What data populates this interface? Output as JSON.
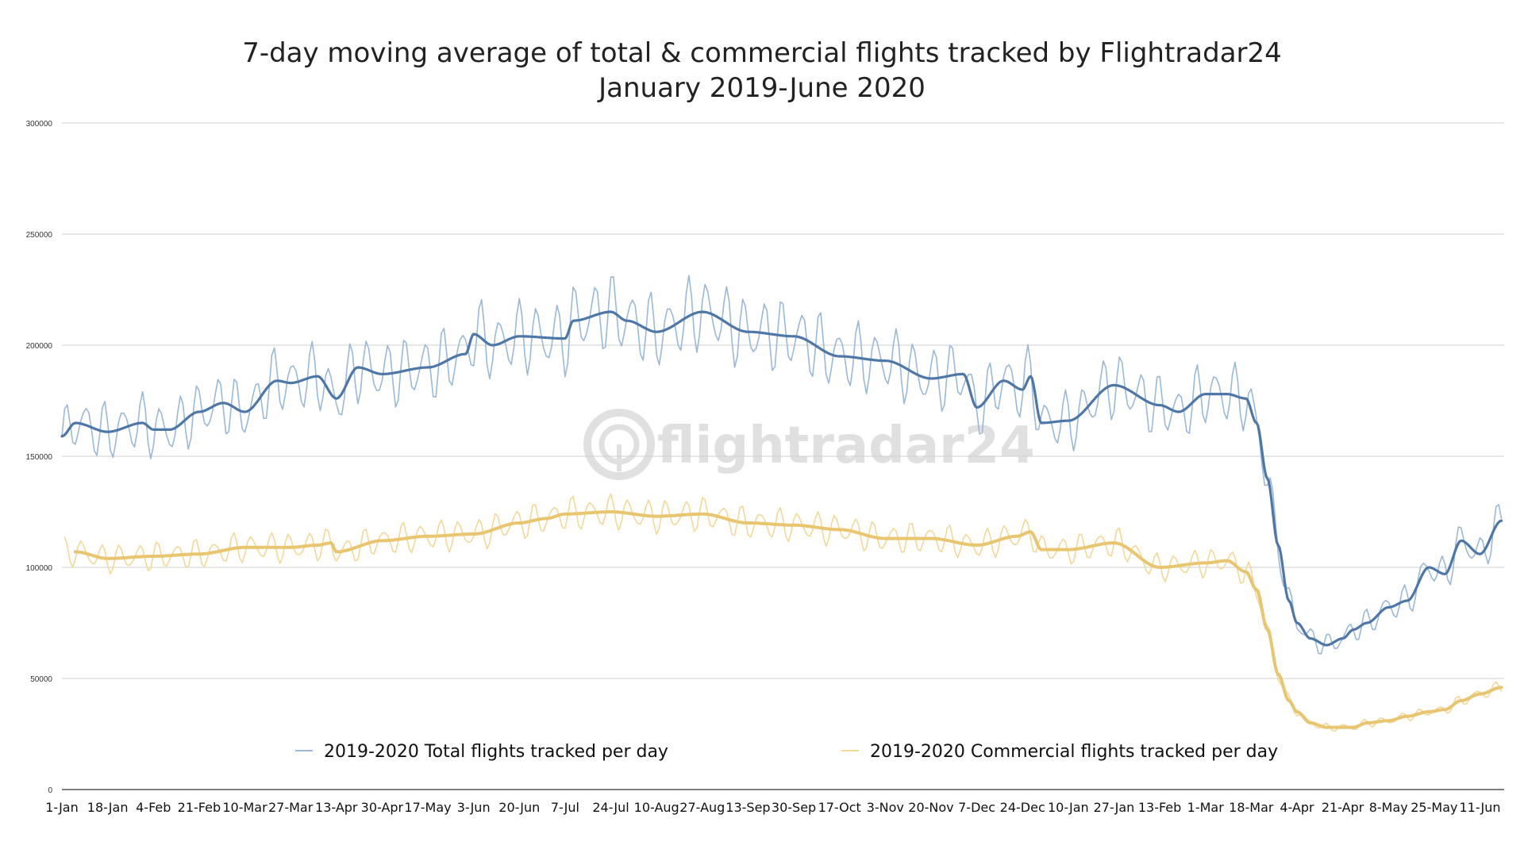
{
  "chart_data": {
    "type": "line",
    "title": "7-day moving average of total & commercial flights tracked by Flightradar24",
    "subtitle": "January 2019-June 2020",
    "xlabel": "",
    "ylabel": "",
    "ylim": [
      0,
      300000
    ],
    "yticks": [
      0,
      50000,
      100000,
      150000,
      200000,
      250000,
      300000
    ],
    "ytick_labels": [
      "0",
      "50000",
      "100000",
      "150000",
      "200000",
      "250000",
      "300000"
    ],
    "grid": true,
    "legend_position": "bottom-center",
    "watermark": "flightradar24",
    "x_tick_labels": [
      "1-Jan",
      "18-Jan",
      "4-Feb",
      "21-Feb",
      "10-Mar",
      "27-Mar",
      "13-Apr",
      "30-Apr",
      "17-May",
      "3-Jun",
      "20-Jun",
      "7-Jul",
      "24-Jul",
      "10-Aug",
      "27-Aug",
      "13-Sep",
      "30-Sep",
      "17-Oct",
      "3-Nov",
      "20-Nov",
      "7-Dec",
      "24-Dec",
      "10-Jan",
      "27-Jan",
      "13-Feb",
      "1-Mar",
      "18-Mar",
      "4-Apr",
      "21-Apr",
      "8-May",
      "25-May",
      "11-Jun"
    ],
    "x_tick_positions": [
      0,
      17,
      34,
      51,
      68,
      85,
      102,
      119,
      136,
      153,
      170,
      187,
      204,
      221,
      238,
      255,
      272,
      289,
      306,
      323,
      340,
      357,
      374,
      391,
      408,
      425,
      442,
      459,
      476,
      493,
      510,
      527
    ],
    "x_max": 536,
    "series": [
      {
        "name": "2019-2020 Total flights tracked per day",
        "color": "#4d77a8",
        "light_color": "#9ab8d8",
        "x": [
          0,
          5,
          17,
          30,
          34,
          40,
          51,
          60,
          68,
          80,
          85,
          95,
          102,
          110,
          119,
          136,
          150,
          153,
          160,
          170,
          187,
          190,
          204,
          210,
          221,
          238,
          255,
          272,
          289,
          306,
          323,
          335,
          340,
          350,
          357,
          360,
          364,
          374,
          391,
          408,
          415,
          425,
          433,
          440,
          444,
          448,
          452,
          456,
          459,
          464,
          470,
          476,
          480,
          485,
          493,
          500,
          508,
          514,
          520,
          527,
          535
        ],
        "values": [
          159000,
          165000,
          161000,
          165000,
          162000,
          162000,
          170000,
          174000,
          170000,
          184000,
          183000,
          186000,
          176000,
          190000,
          187000,
          190000,
          196000,
          205000,
          200000,
          204000,
          203000,
          211000,
          215000,
          211000,
          206000,
          215000,
          206000,
          204000,
          195000,
          193000,
          185000,
          187000,
          172000,
          184000,
          180000,
          186000,
          165000,
          166000,
          182000,
          173000,
          170000,
          178000,
          178000,
          176000,
          165000,
          140000,
          110000,
          85000,
          75000,
          68000,
          65000,
          68000,
          72000,
          75000,
          82000,
          85000,
          100000,
          97000,
          112000,
          106000,
          121000
        ]
      },
      {
        "name": "2019-2020 Commercial flights tracked per day",
        "color": "#e8c56e",
        "light_color": "#f3d998",
        "x": [
          5,
          17,
          34,
          51,
          68,
          85,
          95,
          100,
          102,
          119,
          136,
          153,
          170,
          180,
          187,
          204,
          221,
          238,
          255,
          272,
          289,
          306,
          323,
          340,
          355,
          360,
          364,
          374,
          391,
          408,
          425,
          433,
          440,
          444,
          448,
          452,
          456,
          459,
          464,
          470,
          476,
          480,
          485,
          493,
          500,
          508,
          514,
          520,
          527,
          535
        ],
        "values": [
          107000,
          104000,
          105000,
          106000,
          109000,
          109000,
          110000,
          111000,
          107000,
          112000,
          114000,
          115000,
          120000,
          122000,
          124000,
          125000,
          123000,
          124000,
          120000,
          119000,
          117000,
          113000,
          113000,
          110000,
          114000,
          116000,
          108000,
          108000,
          111000,
          100000,
          102000,
          103000,
          98000,
          90000,
          72000,
          52000,
          40000,
          35000,
          30000,
          28000,
          28000,
          28000,
          30000,
          31000,
          33000,
          35000,
          36000,
          40000,
          43000,
          46000
        ]
      }
    ]
  }
}
